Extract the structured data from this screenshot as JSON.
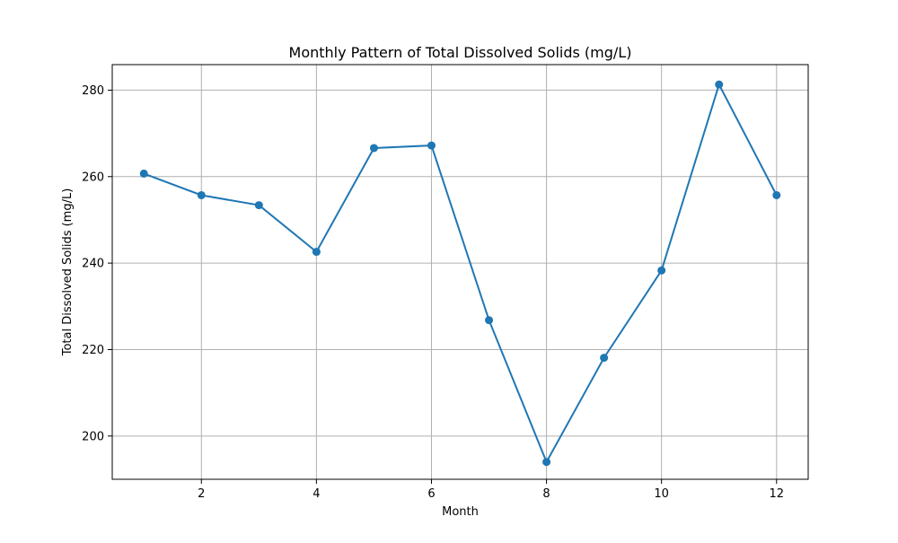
{
  "chart_data": {
    "type": "line",
    "title": "Monthly Pattern of Total Dissolved Solids (mg/L)",
    "xlabel": "Month",
    "ylabel": "Total Dissolved Solids (mg/L)",
    "x": [
      1,
      2,
      3,
      4,
      5,
      6,
      7,
      8,
      9,
      10,
      11,
      12
    ],
    "series": [
      {
        "values": [
          260.7,
          255.7,
          253.4,
          242.6,
          266.6,
          267.2,
          226.8,
          194.0,
          218.1,
          238.3,
          281.3,
          255.7
        ]
      }
    ],
    "xlim": [
      0.45,
      12.55
    ],
    "ylim": [
      190,
      285.9
    ],
    "xticks": [
      2,
      4,
      6,
      8,
      10,
      12
    ],
    "yticks": [
      200,
      220,
      240,
      260,
      280
    ],
    "grid": true,
    "line_color": "#1f77b4",
    "marker": "circle"
  }
}
